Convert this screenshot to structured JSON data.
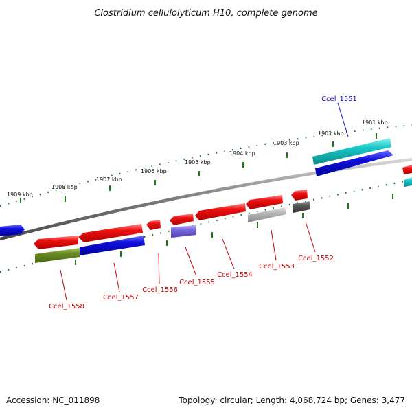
{
  "title": "Clostridium cellulolyticum H10, complete genome",
  "footer": {
    "accession": "Accession: NC_011898",
    "summary": "Topology: circular; Length: 4,068,724 bp; Genes: 3,477"
  },
  "ticks": [
    "1909 kbp",
    "1908 kbp",
    "1907 kbp",
    "1906 kbp",
    "1905 kbp",
    "1904 kbp",
    "1903 kbp",
    "1902 kbp",
    "1901 kbp"
  ],
  "genes": [
    {
      "label": "Ccel_1551",
      "strand": "top",
      "color": "#1010c8"
    },
    {
      "label": "Ccel_1552",
      "strand": "bottom",
      "color": "#c00000"
    },
    {
      "label": "Ccel_1553",
      "strand": "bottom",
      "color": "#c00000"
    },
    {
      "label": "Ccel_1554",
      "strand": "bottom",
      "color": "#c00000"
    },
    {
      "label": "Ccel_1555",
      "strand": "bottom",
      "color": "#c00000"
    },
    {
      "label": "Ccel_1556",
      "strand": "bottom",
      "color": "#c00000"
    },
    {
      "label": "Ccel_1557",
      "strand": "bottom",
      "color": "#c00000"
    },
    {
      "label": "Ccel_1558",
      "strand": "bottom",
      "color": "#c00000"
    }
  ],
  "colors": {
    "backbone": "#7a7a7a",
    "tick": "#1a7a1a",
    "gene_red": "#ee1111",
    "gene_blue": "#1010dd",
    "gene_cyan": "#18c8c8",
    "gene_olive": "#6a8c22",
    "gene_lavender": "#7a6ae0",
    "gene_lightgray": "#b8b8b8",
    "gene_darkgray": "#5a5a5a"
  }
}
